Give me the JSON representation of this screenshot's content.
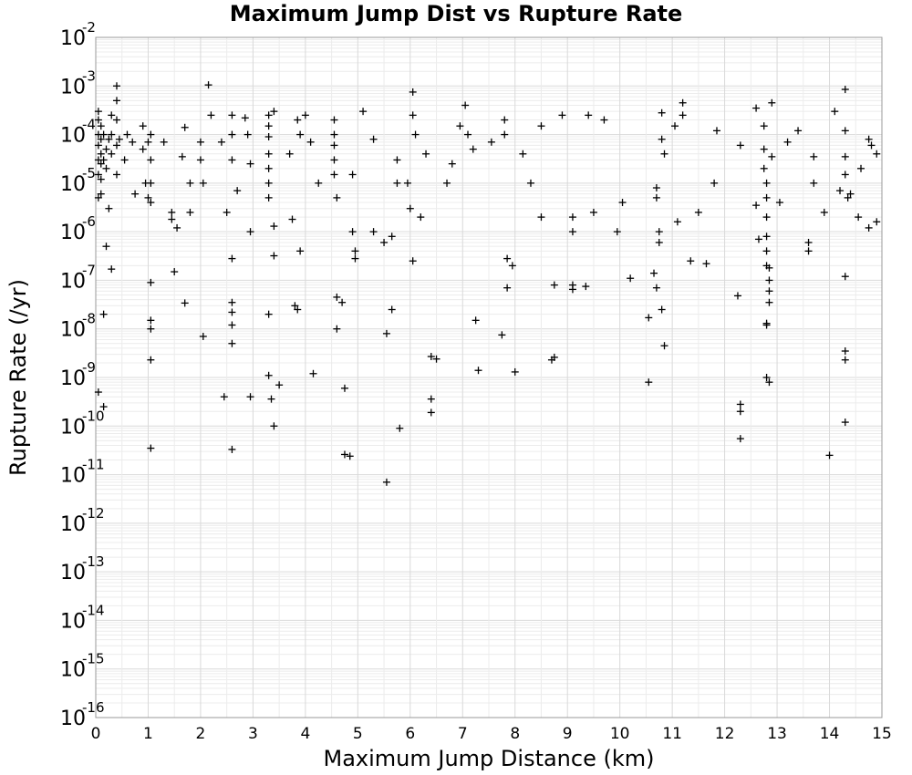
{
  "chart_data": {
    "type": "scatter",
    "title": "Maximum Jump Dist vs Rupture Rate",
    "xlabel": "Maximum Jump Distance (km)",
    "ylabel": "Rupture Rate (/yr)",
    "xlim": [
      0,
      15
    ],
    "ylim": [
      1e-16,
      0.01
    ],
    "y_scale": "log",
    "grid": true,
    "marker": "plus",
    "marker_color": "#000000",
    "x_ticks": [
      "0",
      "1",
      "2",
      "3",
      "4",
      "5",
      "6",
      "7",
      "8",
      "9",
      "10",
      "11",
      "12",
      "13",
      "14",
      "15"
    ],
    "y_ticks": [
      {
        "base": "10",
        "exp": "-16"
      },
      {
        "base": "10",
        "exp": "-15"
      },
      {
        "base": "10",
        "exp": "-14"
      },
      {
        "base": "10",
        "exp": "-13"
      },
      {
        "base": "10",
        "exp": "-12"
      },
      {
        "base": "10",
        "exp": "-11"
      },
      {
        "base": "10",
        "exp": "-10"
      },
      {
        "base": "10",
        "exp": "-9"
      },
      {
        "base": "10",
        "exp": "-8"
      },
      {
        "base": "10",
        "exp": "-7"
      },
      {
        "base": "10",
        "exp": "-6"
      },
      {
        "base": "10",
        "exp": "-5"
      },
      {
        "base": "10",
        "exp": "-4"
      },
      {
        "base": "10",
        "exp": "-3"
      },
      {
        "base": "10",
        "exp": "-2"
      }
    ],
    "points": [
      [
        0.05,
        0.0003
      ],
      [
        0.05,
        0.0002
      ],
      [
        0.05,
        0.0001
      ],
      [
        0.05,
        6e-05
      ],
      [
        0.05,
        3e-05
      ],
      [
        0.05,
        1.5e-05
      ],
      [
        0.05,
        5e-06
      ],
      [
        0.05,
        5e-10
      ],
      [
        0.1,
        0.00015
      ],
      [
        0.1,
        8e-05
      ],
      [
        0.1,
        4e-05
      ],
      [
        0.1,
        2.5e-05
      ],
      [
        0.1,
        1.2e-05
      ],
      [
        0.1,
        6e-06
      ],
      [
        0.15,
        0.0001
      ],
      [
        0.15,
        3e-05
      ],
      [
        0.15,
        2e-08
      ],
      [
        0.15,
        2.5e-10
      ],
      [
        0.2,
        5e-05
      ],
      [
        0.2,
        2e-05
      ],
      [
        0.2,
        5e-07
      ],
      [
        0.25,
        8e-05
      ],
      [
        0.25,
        3e-06
      ],
      [
        0.3,
        0.00025
      ],
      [
        0.3,
        0.0001
      ],
      [
        0.3,
        4e-05
      ],
      [
        0.3,
        1.7e-07
      ],
      [
        0.4,
        0.001
      ],
      [
        0.4,
        0.0005
      ],
      [
        0.4,
        0.0002
      ],
      [
        0.4,
        6e-05
      ],
      [
        0.4,
        1.5e-05
      ],
      [
        0.45,
        8e-05
      ],
      [
        0.55,
        3e-05
      ],
      [
        0.6,
        0.0001
      ],
      [
        0.7,
        7e-05
      ],
      [
        0.75,
        6e-06
      ],
      [
        0.9,
        0.00015
      ],
      [
        0.9,
        5e-05
      ],
      [
        0.95,
        1e-05
      ],
      [
        1.0,
        7e-05
      ],
      [
        1.0,
        5e-06
      ],
      [
        1.05,
        0.0001
      ],
      [
        1.05,
        3e-05
      ],
      [
        1.05,
        1e-05
      ],
      [
        1.05,
        4e-06
      ],
      [
        1.05,
        9e-08
      ],
      [
        1.05,
        1.5e-08
      ],
      [
        1.05,
        1e-08
      ],
      [
        1.05,
        2.3e-09
      ],
      [
        1.05,
        3.5e-11
      ],
      [
        1.3,
        7e-05
      ],
      [
        1.45,
        2.5e-06
      ],
      [
        1.45,
        1.8e-06
      ],
      [
        1.5,
        1.5e-07
      ],
      [
        1.55,
        1.2e-06
      ],
      [
        1.65,
        3.5e-05
      ],
      [
        1.7,
        0.00014
      ],
      [
        1.7,
        3.4e-08
      ],
      [
        1.8,
        1e-05
      ],
      [
        1.8,
        2.5e-06
      ],
      [
        2.0,
        7e-05
      ],
      [
        2.0,
        3e-05
      ],
      [
        2.05,
        1e-05
      ],
      [
        2.05,
        7e-09
      ],
      [
        2.15,
        0.00105
      ],
      [
        2.2,
        0.00025
      ],
      [
        2.4,
        7e-05
      ],
      [
        2.45,
        4e-10
      ],
      [
        2.5,
        2.5e-06
      ],
      [
        2.6,
        0.00025
      ],
      [
        2.6,
        0.0001
      ],
      [
        2.6,
        3e-05
      ],
      [
        2.6,
        2.8e-07
      ],
      [
        2.6,
        3.5e-08
      ],
      [
        2.6,
        2.2e-08
      ],
      [
        2.6,
        1.2e-08
      ],
      [
        2.6,
        5e-09
      ],
      [
        2.6,
        3.3e-11
      ],
      [
        2.7,
        7e-06
      ],
      [
        2.85,
        0.00022
      ],
      [
        2.9,
        0.0001
      ],
      [
        2.95,
        2.5e-05
      ],
      [
        2.95,
        1e-06
      ],
      [
        2.95,
        4e-10
      ],
      [
        3.3,
        0.00025
      ],
      [
        3.3,
        0.00015
      ],
      [
        3.3,
        9e-05
      ],
      [
        3.3,
        4e-05
      ],
      [
        3.3,
        2e-05
      ],
      [
        3.3,
        1e-05
      ],
      [
        3.3,
        5e-06
      ],
      [
        3.3,
        2e-08
      ],
      [
        3.3,
        1.1e-09
      ],
      [
        3.35,
        3.6e-10
      ],
      [
        3.4,
        0.0003
      ],
      [
        3.4,
        1.3e-06
      ],
      [
        3.4,
        3.2e-07
      ],
      [
        3.4,
        1e-10
      ],
      [
        3.5,
        7e-10
      ],
      [
        3.7,
        4e-05
      ],
      [
        3.75,
        1.8e-06
      ],
      [
        3.8,
        3e-08
      ],
      [
        3.85,
        0.0002
      ],
      [
        3.85,
        2.5e-08
      ],
      [
        3.9,
        0.0001
      ],
      [
        3.9,
        4e-07
      ],
      [
        4.0,
        0.00025
      ],
      [
        4.1,
        7e-05
      ],
      [
        4.15,
        1.2e-09
      ],
      [
        4.25,
        1e-05
      ],
      [
        4.55,
        0.0002
      ],
      [
        4.55,
        0.0001
      ],
      [
        4.55,
        6e-05
      ],
      [
        4.55,
        3e-05
      ],
      [
        4.55,
        1.5e-05
      ],
      [
        4.6,
        5e-06
      ],
      [
        4.6,
        4.5e-08
      ],
      [
        4.6,
        1e-08
      ],
      [
        4.7,
        3.5e-08
      ],
      [
        4.75,
        6e-10
      ],
      [
        4.75,
        2.6e-11
      ],
      [
        4.85,
        2.4e-11
      ],
      [
        4.9,
        1.5e-05
      ],
      [
        4.9,
        1e-06
      ],
      [
        4.95,
        4e-07
      ],
      [
        4.95,
        2.8e-07
      ],
      [
        5.1,
        0.0003
      ],
      [
        5.3,
        8e-05
      ],
      [
        5.3,
        1e-06
      ],
      [
        5.5,
        6e-07
      ],
      [
        5.55,
        8e-09
      ],
      [
        5.55,
        7e-12
      ],
      [
        5.65,
        2.5e-08
      ],
      [
        5.65,
        8e-07
      ],
      [
        5.75,
        3e-05
      ],
      [
        5.75,
        1e-05
      ],
      [
        5.8,
        9e-11
      ],
      [
        5.95,
        1e-05
      ],
      [
        6.0,
        3e-06
      ],
      [
        6.05,
        2.5e-07
      ],
      [
        6.05,
        0.00075
      ],
      [
        6.05,
        0.00025
      ],
      [
        6.1,
        0.0001
      ],
      [
        6.2,
        2e-06
      ],
      [
        6.3,
        4e-05
      ],
      [
        6.4,
        2.7e-09
      ],
      [
        6.4,
        3.6e-10
      ],
      [
        6.4,
        1.9e-10
      ],
      [
        6.5,
        2.4e-09
      ],
      [
        6.7,
        1e-05
      ],
      [
        6.8,
        2.5e-05
      ],
      [
        6.95,
        0.00015
      ],
      [
        7.05,
        0.0004
      ],
      [
        7.1,
        0.0001
      ],
      [
        7.2,
        5e-05
      ],
      [
        7.25,
        1.5e-08
      ],
      [
        7.3,
        1.4e-09
      ],
      [
        7.55,
        7e-05
      ],
      [
        7.75,
        7.5e-09
      ],
      [
        7.8,
        0.0002
      ],
      [
        7.8,
        0.0001
      ],
      [
        7.85,
        2.8e-07
      ],
      [
        7.85,
        7e-08
      ],
      [
        7.95,
        2e-07
      ],
      [
        8.0,
        1.3e-09
      ],
      [
        8.15,
        4e-05
      ],
      [
        8.3,
        1e-05
      ],
      [
        8.5,
        2e-06
      ],
      [
        8.5,
        0.00015
      ],
      [
        8.7,
        2.3e-09
      ],
      [
        8.75,
        2.6e-09
      ],
      [
        8.75,
        8e-08
      ],
      [
        8.9,
        0.00025
      ],
      [
        9.1,
        2e-06
      ],
      [
        9.1,
        1e-06
      ],
      [
        9.1,
        8e-08
      ],
      [
        9.1,
        6.5e-08
      ],
      [
        9.35,
        7.5e-08
      ],
      [
        9.4,
        0.00025
      ],
      [
        9.5,
        2.5e-06
      ],
      [
        9.7,
        0.0002
      ],
      [
        9.95,
        1e-06
      ],
      [
        10.05,
        4e-06
      ],
      [
        10.2,
        1.1e-07
      ],
      [
        10.55,
        1.7e-08
      ],
      [
        10.55,
        8e-10
      ],
      [
        10.65,
        1.4e-07
      ],
      [
        10.7,
        7e-08
      ],
      [
        10.8,
        2.5e-08
      ],
      [
        10.85,
        4.5e-09
      ],
      [
        10.7,
        8e-06
      ],
      [
        10.7,
        5e-06
      ],
      [
        10.75,
        1e-06
      ],
      [
        10.75,
        6e-07
      ],
      [
        10.8,
        0.00028
      ],
      [
        10.8,
        8e-05
      ],
      [
        10.85,
        4e-05
      ],
      [
        11.05,
        0.00015
      ],
      [
        11.1,
        1.6e-06
      ],
      [
        11.2,
        0.00045
      ],
      [
        11.2,
        0.00025
      ],
      [
        11.35,
        2.5e-07
      ],
      [
        11.5,
        2.5e-06
      ],
      [
        11.65,
        2.2e-07
      ],
      [
        11.85,
        0.00012
      ],
      [
        11.8,
        1e-05
      ],
      [
        12.25,
        4.8e-08
      ],
      [
        12.3,
        2.8e-10
      ],
      [
        12.3,
        2e-10
      ],
      [
        12.3,
        5.5e-11
      ],
      [
        12.3,
        6e-05
      ],
      [
        12.6,
        0.00035
      ],
      [
        12.6,
        3.5e-06
      ],
      [
        12.65,
        7e-07
      ],
      [
        12.75,
        0.00015
      ],
      [
        12.75,
        5e-05
      ],
      [
        12.75,
        2e-05
      ],
      [
        12.8,
        1e-05
      ],
      [
        12.8,
        5e-06
      ],
      [
        12.8,
        2e-06
      ],
      [
        12.8,
        8e-07
      ],
      [
        12.8,
        4e-07
      ],
      [
        12.8,
        2e-07
      ],
      [
        12.8,
        1.3e-08
      ],
      [
        12.8,
        1.2e-08
      ],
      [
        12.8,
        1e-09
      ],
      [
        12.85,
        8e-10
      ],
      [
        12.85,
        1.8e-07
      ],
      [
        12.85,
        1e-07
      ],
      [
        12.85,
        6e-08
      ],
      [
        12.85,
        3.5e-08
      ],
      [
        12.9,
        0.00045
      ],
      [
        12.9,
        3.5e-05
      ],
      [
        13.05,
        4e-06
      ],
      [
        13.2,
        7e-05
      ],
      [
        13.4,
        0.00012
      ],
      [
        13.6,
        6e-07
      ],
      [
        13.6,
        4e-07
      ],
      [
        13.7,
        3.5e-05
      ],
      [
        13.7,
        1e-05
      ],
      [
        13.9,
        2.5e-06
      ],
      [
        14.0,
        2.5e-11
      ],
      [
        14.1,
        0.0003
      ],
      [
        14.2,
        7e-06
      ],
      [
        14.3,
        0.00085
      ],
      [
        14.3,
        0.00012
      ],
      [
        14.3,
        3.5e-05
      ],
      [
        14.3,
        1.5e-05
      ],
      [
        14.3,
        1.2e-07
      ],
      [
        14.3,
        3.5e-09
      ],
      [
        14.3,
        2.3e-09
      ],
      [
        14.3,
        1.2e-10
      ],
      [
        14.35,
        5e-06
      ],
      [
        14.4,
        6e-06
      ],
      [
        14.55,
        2e-06
      ],
      [
        14.6,
        2e-05
      ],
      [
        14.75,
        1.2e-06
      ],
      [
        14.75,
        8e-05
      ],
      [
        14.8,
        6e-05
      ],
      [
        14.9,
        1.6e-06
      ],
      [
        14.9,
        4e-05
      ]
    ]
  }
}
